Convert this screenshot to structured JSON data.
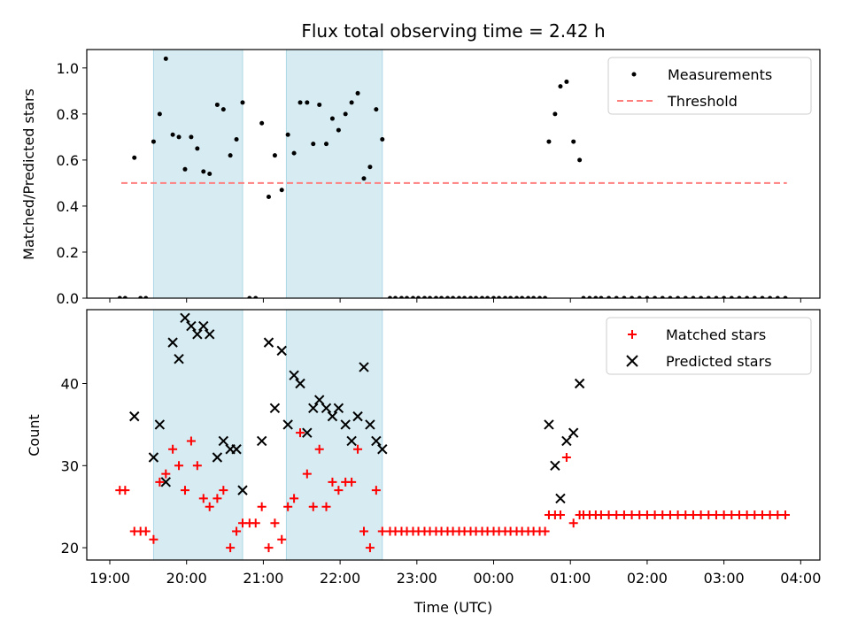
{
  "chart_data": [
    {
      "type": "scatter",
      "title": "Flux total observing time = 2.42 h",
      "xlabel": "",
      "ylabel": "Matched/Predicted stars",
      "ylim": [
        0,
        1.08
      ],
      "yticks": [
        0.0,
        0.2,
        0.4,
        0.6,
        0.8,
        1.0
      ],
      "ytick_labels": [
        "0.0",
        "0.2",
        "0.4",
        "0.6",
        "0.8",
        "1.0"
      ],
      "x_unit": "hours since 19:00 UTC",
      "xlim": [
        -0.3,
        9.25
      ],
      "shaded_intervals": [
        [
          0.57,
          1.73
        ],
        [
          2.3,
          3.55
        ]
      ],
      "threshold": {
        "name": "Threshold",
        "value": 0.5,
        "x_range": [
          0.15,
          8.82
        ],
        "color": "#ff7f7f"
      },
      "series": [
        {
          "name": "Measurements",
          "color": "#000000",
          "points": [
            [
              0.13,
              0
            ],
            [
              0.2,
              0
            ],
            [
              0.32,
              0.61
            ],
            [
              0.4,
              0
            ],
            [
              0.47,
              0
            ],
            [
              0.57,
              0.68
            ],
            [
              0.65,
              0.8
            ],
            [
              0.73,
              1.04
            ],
            [
              0.82,
              0.71
            ],
            [
              0.9,
              0.7
            ],
            [
              0.98,
              0.56
            ],
            [
              1.06,
              0.7
            ],
            [
              1.14,
              0.65
            ],
            [
              1.22,
              0.55
            ],
            [
              1.3,
              0.54
            ],
            [
              1.4,
              0.84
            ],
            [
              1.48,
              0.82
            ],
            [
              1.57,
              0.62
            ],
            [
              1.65,
              0.69
            ],
            [
              1.73,
              0.85
            ],
            [
              1.82,
              0
            ],
            [
              1.9,
              0
            ],
            [
              1.98,
              0.76
            ],
            [
              2.07,
              0.44
            ],
            [
              2.15,
              0.62
            ],
            [
              2.24,
              0.47
            ],
            [
              2.32,
              0.71
            ],
            [
              2.4,
              0.63
            ],
            [
              2.48,
              0.85
            ],
            [
              2.57,
              0.85
            ],
            [
              2.65,
              0.67
            ],
            [
              2.73,
              0.84
            ],
            [
              2.82,
              0.67
            ],
            [
              2.9,
              0.78
            ],
            [
              2.98,
              0.73
            ],
            [
              3.07,
              0.8
            ],
            [
              3.15,
              0.85
            ],
            [
              3.23,
              0.89
            ],
            [
              3.31,
              0.52
            ],
            [
              3.39,
              0.57
            ],
            [
              3.47,
              0.82
            ],
            [
              3.55,
              0.69
            ],
            [
              3.65,
              0
            ],
            [
              3.72,
              0
            ],
            [
              3.8,
              0
            ],
            [
              3.87,
              0
            ],
            [
              3.95,
              0
            ],
            [
              4.02,
              0
            ],
            [
              4.1,
              0
            ],
            [
              4.17,
              0
            ],
            [
              4.25,
              0
            ],
            [
              4.32,
              0
            ],
            [
              4.4,
              0
            ],
            [
              4.47,
              0
            ],
            [
              4.55,
              0
            ],
            [
              4.62,
              0
            ],
            [
              4.7,
              0
            ],
            [
              4.77,
              0
            ],
            [
              4.85,
              0
            ],
            [
              4.92,
              0
            ],
            [
              5.0,
              0
            ],
            [
              5.07,
              0
            ],
            [
              5.15,
              0
            ],
            [
              5.22,
              0
            ],
            [
              5.3,
              0
            ],
            [
              5.37,
              0
            ],
            [
              5.45,
              0
            ],
            [
              5.52,
              0
            ],
            [
              5.6,
              0
            ],
            [
              5.67,
              0
            ],
            [
              5.72,
              0.68
            ],
            [
              5.8,
              0.8
            ],
            [
              5.87,
              0.92
            ],
            [
              5.95,
              0.94
            ],
            [
              6.04,
              0.68
            ],
            [
              6.12,
              0.6
            ],
            [
              6.17,
              0
            ],
            [
              6.25,
              0
            ],
            [
              6.33,
              0
            ],
            [
              6.4,
              0
            ],
            [
              6.5,
              0
            ],
            [
              6.6,
              0
            ],
            [
              6.7,
              0
            ],
            [
              6.8,
              0
            ],
            [
              6.9,
              0
            ],
            [
              7.0,
              0
            ],
            [
              7.1,
              0
            ],
            [
              7.2,
              0
            ],
            [
              7.3,
              0
            ],
            [
              7.4,
              0
            ],
            [
              7.5,
              0
            ],
            [
              7.6,
              0
            ],
            [
              7.7,
              0
            ],
            [
              7.8,
              0
            ],
            [
              7.9,
              0
            ],
            [
              8.0,
              0
            ],
            [
              8.1,
              0
            ],
            [
              8.2,
              0
            ],
            [
              8.3,
              0
            ],
            [
              8.4,
              0
            ],
            [
              8.5,
              0
            ],
            [
              8.6,
              0
            ],
            [
              8.7,
              0
            ],
            [
              8.8,
              0
            ]
          ]
        }
      ],
      "legend": {
        "position": "top-right",
        "entries": [
          "Measurements",
          "Threshold"
        ]
      }
    },
    {
      "type": "scatter",
      "title": "",
      "xlabel": "Time (UTC)",
      "ylabel": "Count",
      "ylim": [
        18.5,
        49
      ],
      "yticks": [
        20,
        30,
        40
      ],
      "ytick_labels": [
        "20",
        "30",
        "40"
      ],
      "x_unit": "hours since 19:00 UTC",
      "xlim": [
        -0.3,
        9.25
      ],
      "xticks": [
        0,
        1,
        2,
        3,
        4,
        5,
        6,
        7,
        8,
        9
      ],
      "xtick_labels": [
        "19:00",
        "20:00",
        "21:00",
        "22:00",
        "23:00",
        "00:00",
        "01:00",
        "02:00",
        "03:00",
        "04:00"
      ],
      "shaded_intervals": [
        [
          0.57,
          1.73
        ],
        [
          2.3,
          3.55
        ]
      ],
      "series": [
        {
          "name": "Matched stars",
          "marker": "+",
          "color": "#ff0000",
          "points": [
            [
              0.13,
              27
            ],
            [
              0.2,
              27
            ],
            [
              0.32,
              22
            ],
            [
              0.4,
              22
            ],
            [
              0.47,
              22
            ],
            [
              0.57,
              21
            ],
            [
              0.65,
              28
            ],
            [
              0.73,
              29
            ],
            [
              0.82,
              32
            ],
            [
              0.9,
              30
            ],
            [
              0.98,
              27
            ],
            [
              1.06,
              33
            ],
            [
              1.14,
              30
            ],
            [
              1.22,
              26
            ],
            [
              1.3,
              25
            ],
            [
              1.4,
              26
            ],
            [
              1.48,
              27
            ],
            [
              1.57,
              20
            ],
            [
              1.65,
              22
            ],
            [
              1.73,
              23
            ],
            [
              1.82,
              23
            ],
            [
              1.9,
              23
            ],
            [
              1.98,
              25
            ],
            [
              2.07,
              20
            ],
            [
              2.15,
              23
            ],
            [
              2.24,
              21
            ],
            [
              2.32,
              25
            ],
            [
              2.4,
              26
            ],
            [
              2.48,
              34
            ],
            [
              2.57,
              29
            ],
            [
              2.65,
              25
            ],
            [
              2.73,
              32
            ],
            [
              2.82,
              25
            ],
            [
              2.9,
              28
            ],
            [
              2.98,
              27
            ],
            [
              3.07,
              28
            ],
            [
              3.15,
              28
            ],
            [
              3.23,
              32
            ],
            [
              3.31,
              22
            ],
            [
              3.39,
              20
            ],
            [
              3.47,
              27
            ],
            [
              3.55,
              22
            ],
            [
              3.65,
              22
            ],
            [
              3.72,
              22
            ],
            [
              3.8,
              22
            ],
            [
              3.87,
              22
            ],
            [
              3.95,
              22
            ],
            [
              4.02,
              22
            ],
            [
              4.1,
              22
            ],
            [
              4.17,
              22
            ],
            [
              4.25,
              22
            ],
            [
              4.32,
              22
            ],
            [
              4.4,
              22
            ],
            [
              4.47,
              22
            ],
            [
              4.55,
              22
            ],
            [
              4.62,
              22
            ],
            [
              4.7,
              22
            ],
            [
              4.77,
              22
            ],
            [
              4.85,
              22
            ],
            [
              4.92,
              22
            ],
            [
              5.0,
              22
            ],
            [
              5.07,
              22
            ],
            [
              5.15,
              22
            ],
            [
              5.22,
              22
            ],
            [
              5.3,
              22
            ],
            [
              5.37,
              22
            ],
            [
              5.45,
              22
            ],
            [
              5.52,
              22
            ],
            [
              5.6,
              22
            ],
            [
              5.67,
              22
            ],
            [
              5.72,
              24
            ],
            [
              5.8,
              24
            ],
            [
              5.87,
              24
            ],
            [
              5.95,
              31
            ],
            [
              6.04,
              23
            ],
            [
              6.12,
              24
            ],
            [
              6.17,
              24
            ],
            [
              6.25,
              24
            ],
            [
              6.33,
              24
            ],
            [
              6.4,
              24
            ],
            [
              6.5,
              24
            ],
            [
              6.6,
              24
            ],
            [
              6.7,
              24
            ],
            [
              6.8,
              24
            ],
            [
              6.9,
              24
            ],
            [
              7.0,
              24
            ],
            [
              7.1,
              24
            ],
            [
              7.2,
              24
            ],
            [
              7.3,
              24
            ],
            [
              7.4,
              24
            ],
            [
              7.5,
              24
            ],
            [
              7.6,
              24
            ],
            [
              7.7,
              24
            ],
            [
              7.8,
              24
            ],
            [
              7.9,
              24
            ],
            [
              8.0,
              24
            ],
            [
              8.1,
              24
            ],
            [
              8.2,
              24
            ],
            [
              8.3,
              24
            ],
            [
              8.4,
              24
            ],
            [
              8.5,
              24
            ],
            [
              8.6,
              24
            ],
            [
              8.7,
              24
            ],
            [
              8.8,
              24
            ]
          ]
        },
        {
          "name": "Predicted stars",
          "marker": "x",
          "color": "#000000",
          "points": [
            [
              0.32,
              36
            ],
            [
              0.57,
              31
            ],
            [
              0.65,
              35
            ],
            [
              0.73,
              28
            ],
            [
              0.82,
              45
            ],
            [
              0.9,
              43
            ],
            [
              0.98,
              48
            ],
            [
              1.06,
              47
            ],
            [
              1.14,
              46
            ],
            [
              1.22,
              47
            ],
            [
              1.3,
              46
            ],
            [
              1.4,
              31
            ],
            [
              1.48,
              33
            ],
            [
              1.57,
              32
            ],
            [
              1.65,
              32
            ],
            [
              1.73,
              27
            ],
            [
              1.98,
              33
            ],
            [
              2.07,
              45
            ],
            [
              2.15,
              37
            ],
            [
              2.24,
              44
            ],
            [
              2.32,
              35
            ],
            [
              2.4,
              41
            ],
            [
              2.48,
              40
            ],
            [
              2.57,
              34
            ],
            [
              2.65,
              37
            ],
            [
              2.73,
              38
            ],
            [
              2.82,
              37
            ],
            [
              2.9,
              36
            ],
            [
              2.98,
              37
            ],
            [
              3.07,
              35
            ],
            [
              3.15,
              33
            ],
            [
              3.23,
              36
            ],
            [
              3.31,
              42
            ],
            [
              3.39,
              35
            ],
            [
              3.47,
              33
            ],
            [
              3.55,
              32
            ],
            [
              5.72,
              35
            ],
            [
              5.8,
              30
            ],
            [
              5.87,
              26
            ],
            [
              5.95,
              33
            ],
            [
              6.04,
              34
            ],
            [
              6.12,
              40
            ]
          ]
        }
      ],
      "legend": {
        "position": "top-right",
        "entries": [
          "Matched stars",
          "Predicted stars"
        ]
      }
    }
  ]
}
